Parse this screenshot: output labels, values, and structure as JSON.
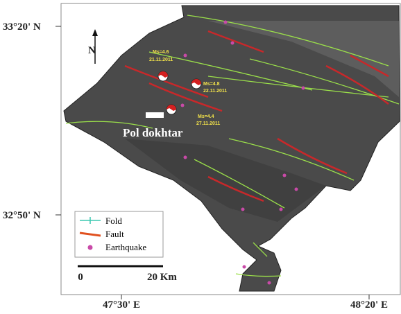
{
  "latitude_labels": [
    "33°20' N",
    "32°50' N"
  ],
  "longitude_labels": [
    "47°30' E",
    "48°20' E"
  ],
  "north_label": "N",
  "events": [
    {
      "magnitude": "Ms=4.6",
      "date": "21.11.2011"
    },
    {
      "magnitude": "Ms=4.8",
      "date": "22.11.2011"
    },
    {
      "magnitude": "Ms=4.4",
      "date": "27.11.2011"
    }
  ],
  "town": "Pol dokhtar",
  "legend": [
    "Fold",
    "Fault",
    "Earthquake"
  ],
  "scale": {
    "start": "0",
    "end": "20 Km"
  }
}
